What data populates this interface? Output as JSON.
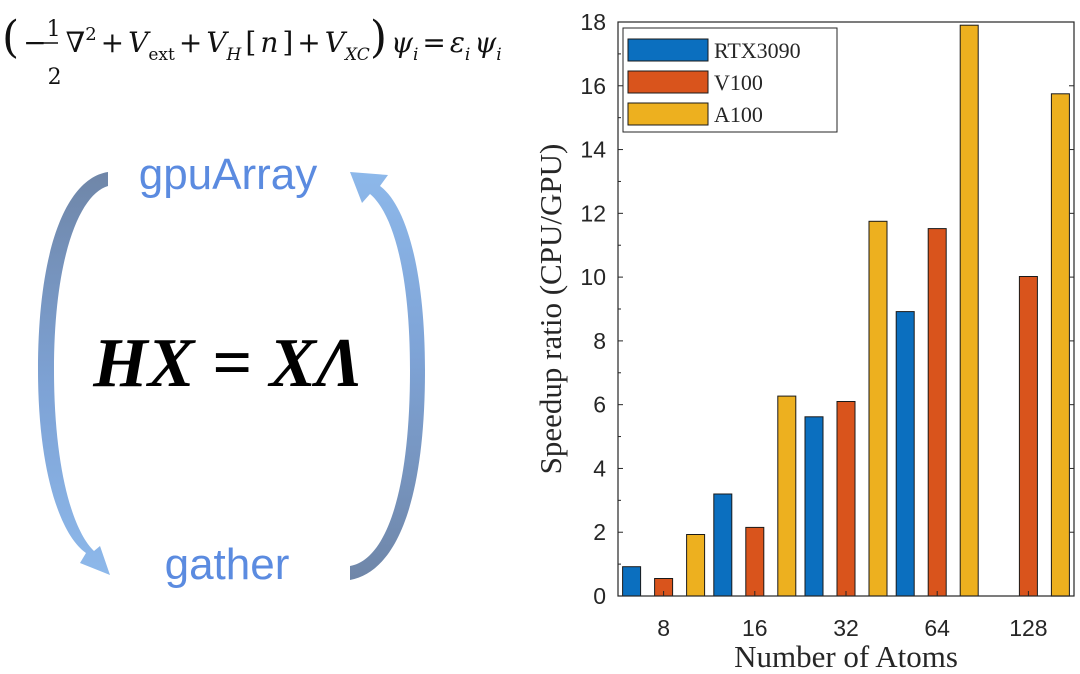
{
  "left_panel": {
    "equation_segments": [
      {
        "t": "(",
        "s": "paren"
      },
      {
        "t": "−",
        "s": "normal"
      },
      {
        "t": "1",
        "s": "frac-num"
      },
      {
        "t": "2",
        "s": "frac-den"
      },
      {
        "t": "∇",
        "s": "normal"
      },
      {
        "t": "2",
        "s": "sup"
      },
      {
        "t": "+",
        "s": "normal"
      },
      {
        "t": "V",
        "s": "italic"
      },
      {
        "t": "ext",
        "s": "sub"
      },
      {
        "t": "+",
        "s": "normal"
      },
      {
        "t": "V",
        "s": "italic"
      },
      {
        "t": "H",
        "s": "sub-italic"
      },
      {
        "t": "[",
        "s": "normal"
      },
      {
        "t": "n",
        "s": "italic"
      },
      {
        "t": "]",
        "s": "normal"
      },
      {
        "t": "+",
        "s": "normal"
      },
      {
        "t": "V",
        "s": "italic"
      },
      {
        "t": "XC",
        "s": "sub-italic"
      },
      {
        "t": ")",
        "s": "paren"
      },
      {
        "t": "ψ",
        "s": "italic"
      },
      {
        "t": "i",
        "s": "sub-italic"
      },
      {
        "t": "=",
        "s": "normal"
      },
      {
        "t": "ε",
        "s": "italic"
      },
      {
        "t": "i",
        "s": "sub-italic"
      },
      {
        "t": "ψ",
        "s": "italic"
      },
      {
        "t": "i",
        "s": "sub-italic"
      }
    ],
    "top_label": "gpuArray",
    "bottom_label": "gather",
    "main_equation": "HX = XΛ",
    "arrow_color": "#7aa6df",
    "arrow_dark": "#6f86a8",
    "label_color": "#5b8be0"
  },
  "chart_data": {
    "type": "bar",
    "title": "",
    "xlabel": "Number of Atoms",
    "ylabel": "Speedup ratio (CPU/GPU)",
    "categories": [
      "8",
      "16",
      "32",
      "64",
      "128"
    ],
    "ylim": [
      0,
      18
    ],
    "yticks": [
      "0",
      "2",
      "4",
      "6",
      "8",
      "10",
      "12",
      "14",
      "16",
      "18"
    ],
    "grid": false,
    "legend_position": "top-left",
    "series": [
      {
        "name": "RTX3090",
        "color": "#0b6fbf",
        "values": [
          0.92,
          3.2,
          5.62,
          8.92,
          null
        ]
      },
      {
        "name": "V100",
        "color": "#d9541c",
        "values": [
          0.55,
          2.15,
          6.1,
          11.52,
          10.02
        ]
      },
      {
        "name": "A100",
        "color": "#edb01f",
        "values": [
          1.93,
          6.27,
          11.75,
          17.9,
          15.75
        ]
      }
    ]
  }
}
